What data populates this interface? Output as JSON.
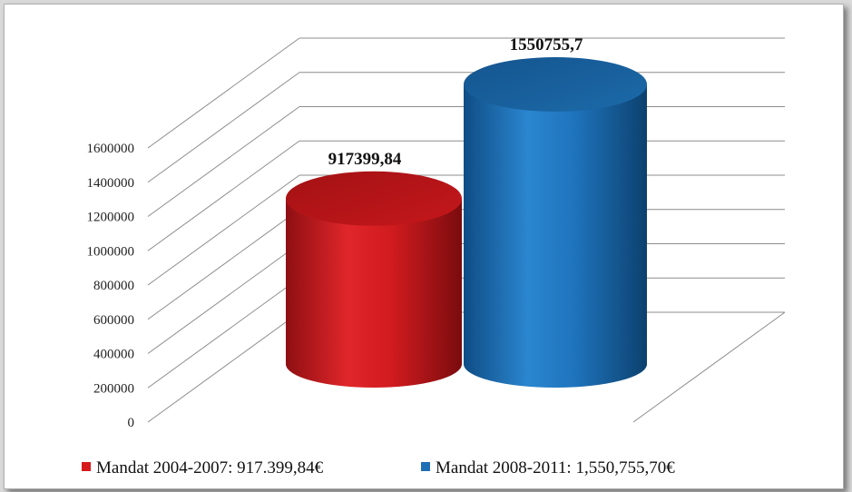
{
  "chart_data": {
    "type": "bar",
    "style": "3d-cylinder",
    "title": "",
    "xlabel": "",
    "ylabel": "",
    "ylim": [
      0,
      1600000
    ],
    "y_ticks": [
      "0",
      "200000",
      "400000",
      "600000",
      "800000",
      "1000000",
      "1200000",
      "1400000",
      "1600000"
    ],
    "grid": true,
    "legend_position": "bottom",
    "series": [
      {
        "name": "Mandat 2004-2007: 917.399,84€",
        "value": 917399.84,
        "label": "917399,84",
        "color": "#d7191c"
      },
      {
        "name": "Mandat 2008-2011: 1,550,755,70€",
        "value": 1550755.7,
        "label": "1550755,7",
        "color": "#1f6fb5"
      }
    ]
  }
}
